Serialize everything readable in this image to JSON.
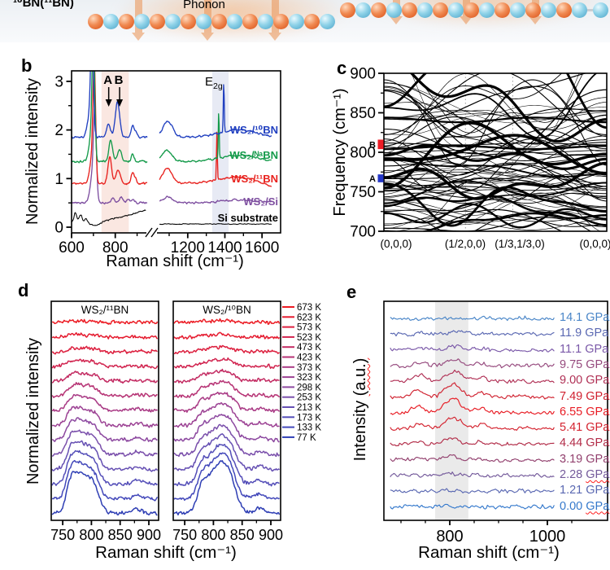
{
  "schematic": {
    "label": "¹⁰BN(¹¹BN)",
    "phonon_label": "Phonon",
    "boron_color": "#e05a20",
    "nitrogen_color": "#6cc0dd",
    "arrow_color": "#eb9a60",
    "left_chain_atoms": 16,
    "right_chain_atoms": 16
  },
  "chart_data": {
    "panel_b": {
      "letter": "b",
      "type": "line",
      "xlabel": "Raman shift (cm⁻¹)",
      "ylabel": "Normalized intensity",
      "yticks": [
        0,
        1,
        2,
        3
      ],
      "xticks": [
        600,
        800,
        1200,
        1400,
        1600
      ],
      "xaxis_break": [
        950,
        1030
      ],
      "ylim": [
        0,
        3.2
      ],
      "highlight_bands": [
        {
          "x0": 737,
          "x1": 862,
          "color": "#fae7e1"
        },
        {
          "x0": 1332,
          "x1": 1420,
          "color": "#e7eaf4"
        }
      ],
      "annotations": [
        {
          "text": "A",
          "x": 770
        },
        {
          "text": "B",
          "x": 820
        },
        {
          "text_base": "E",
          "text_sub": "2g",
          "x": 1380
        }
      ],
      "series": [
        {
          "name": "si-substrate",
          "label": "Si substrate",
          "color": "#000000",
          "baseline": 0.1,
          "baseline_right": 0.065,
          "noise": 0.014,
          "lw": 1.05,
          "peaks": [
            [
              617,
              6,
              0.2
            ],
            [
              641,
              7,
              0.16
            ],
            [
              666,
              6,
              0.09
            ],
            [
              705,
              18,
              -0.07
            ]
          ],
          "ramp": {
            "from": 730,
            "to": 950,
            "h": 0.26
          },
          "peaks_right": []
        },
        {
          "name": "ws2-si",
          "label": "WS₂/Si",
          "color": "#7e4fa0",
          "baseline": 0.5,
          "noise": 0.02,
          "lw": 1.35,
          "peaks": [
            [
              707,
              6.5,
              1.6
            ],
            [
              697,
              12,
              0.55
            ],
            [
              790,
              8,
              0.1
            ],
            [
              828,
              9,
              0.11
            ],
            [
              859,
              8,
              0.08
            ],
            [
              882,
              7,
              0.06
            ]
          ],
          "peaks_right": [
            [
              1093,
              26,
              0.12
            ],
            [
              1480,
              95,
              0.06
            ]
          ]
        },
        {
          "name": "ws2-11bn",
          "label": "WS₂/¹¹BN",
          "color": "#e8211d",
          "baseline": 0.9,
          "noise": 0.02,
          "lw": 1.35,
          "peaks": [
            [
              704,
              6,
              2.2
            ],
            [
              694,
              11,
              0.5
            ],
            [
              775,
              8.5,
              0.55
            ],
            [
              813,
              10,
              0.28
            ],
            [
              879,
              6,
              0.22
            ],
            [
              893,
              6,
              0.1
            ]
          ],
          "peaks_right": [
            [
              1090,
              26,
              0.3
            ],
            [
              1357,
              2.3,
              0.97
            ],
            [
              1460,
              100,
              0.13
            ],
            [
              1690,
              60,
              -0.1
            ]
          ]
        },
        {
          "name": "ws2-nabn",
          "label": "WS₂/ᴺᵃBN",
          "color": "#149a4a",
          "baseline": 1.35,
          "noise": 0.02,
          "lw": 1.35,
          "peaks": [
            [
              700,
              6,
              2.3
            ],
            [
              690,
              11,
              0.5
            ],
            [
              779,
              8.5,
              0.43
            ],
            [
              820,
              9,
              0.25
            ],
            [
              880,
              6,
              0.15
            ]
          ],
          "peaks_right": [
            [
              1090,
              26,
              0.22
            ],
            [
              1367,
              2.3,
              1.0
            ],
            [
              1470,
              100,
              0.13
            ]
          ]
        },
        {
          "name": "ws2-10bn",
          "label": "WS₂/¹⁰BN",
          "color": "#2140c0",
          "baseline": 1.85,
          "noise": 0.02,
          "lw": 1.35,
          "peaks": [
            [
              694,
              6,
              2.1
            ],
            [
              684,
              11,
              0.5
            ],
            [
              769,
              9,
              0.28
            ],
            [
              810,
              10,
              0.73
            ],
            [
              879,
              6,
              0.25
            ],
            [
              894,
              6,
              0.13
            ]
          ],
          "peaks_right": [
            [
              1093,
              26,
              0.33
            ],
            [
              1394,
              2.5,
              1.05
            ],
            [
              1470,
              100,
              0.15
            ]
          ]
        }
      ]
    },
    "panel_c": {
      "letter": "c",
      "type": "dispersion",
      "ylabel": "Frequency (cm⁻¹)",
      "yticks": [
        700,
        750,
        800,
        850,
        900
      ],
      "ylim": [
        700,
        900
      ],
      "kpath_labels": [
        "(0,0,0)",
        "(1/2,0,0)",
        "(1/3,1/3,0)",
        "(0,0,0)"
      ],
      "markers": [
        {
          "text": "B",
          "freq": 810,
          "f0": 804,
          "f1": 816,
          "color": "#ee1c25"
        },
        {
          "text": "A",
          "freq": 767,
          "f0": 762,
          "f1": 772,
          "color": "#2437c8"
        }
      ],
      "flat_bands": [
        [
          806,
          2,
          2.4
        ],
        [
          810.5,
          1.2,
          1.1
        ],
        [
          801,
          1.5,
          0.9
        ],
        [
          841,
          3,
          2.2
        ],
        [
          848,
          5,
          0.8
        ],
        [
          765,
          4,
          0.8
        ],
        [
          772,
          3,
          0.8
        ]
      ],
      "n_random_bands": 68,
      "seed": 11
    },
    "panel_d": {
      "letter": "d",
      "type": "line",
      "xlabel": "Raman shift (cm⁻¹)",
      "ylabel": "Normalized intensity",
      "xticks": [
        750,
        800,
        850,
        900
      ],
      "xlim": [
        730,
        917
      ],
      "subplots": [
        {
          "title": "WS₂/¹¹BN",
          "mode": "bn11"
        },
        {
          "title": "WS₂/¹⁰BN",
          "mode": "bn10"
        }
      ],
      "temperatures": [
        {
          "label": "673 K",
          "color": "#ec1c24",
          "peak_h": 2
        },
        {
          "label": "623 K",
          "color": "#e51b2f",
          "peak_h": 3
        },
        {
          "label": "573 K",
          "color": "#dc1f3e",
          "peak_h": 5
        },
        {
          "label": "523 K",
          "color": "#d1244f",
          "peak_h": 8
        },
        {
          "label": "473 K",
          "color": "#c32b62",
          "peak_h": 11
        },
        {
          "label": "423 K",
          "color": "#b63274",
          "peak_h": 15
        },
        {
          "label": "373 K",
          "color": "#a93a85",
          "peak_h": 19
        },
        {
          "label": "323 K",
          "color": "#9c4294",
          "peak_h": 23
        },
        {
          "label": "298 K",
          "color": "#8d49a0",
          "peak_h": 27
        },
        {
          "label": "253 K",
          "color": "#7a4fab",
          "peak_h": 31
        },
        {
          "label": "213 K",
          "color": "#6650b3",
          "peak_h": 36
        },
        {
          "label": "173 K",
          "color": "#544eb8",
          "peak_h": 42
        },
        {
          "label": "133 K",
          "color": "#4348ba",
          "peak_h": 48
        },
        {
          "label": "77 K",
          "color": "#2e3eb4",
          "peak_h": 55
        }
      ]
    },
    "panel_e": {
      "letter": "e",
      "type": "line",
      "xlabel": "Raman shift (cm⁻¹)",
      "ylabel_main": "Intensity ",
      "ylabel_units": "(a.u.)",
      "xticks": [
        800,
        1000
      ],
      "xlim": [
        665,
        1020
      ],
      "highlight_band": {
        "x0": 770,
        "x1": 838
      },
      "pressures": [
        {
          "label": "14.1 GPa",
          "color": "#4a86c8",
          "peak_h": 1.5,
          "peak_h2": 0.5,
          "center": 820,
          "squiggle": false
        },
        {
          "label": "11.9 GPa",
          "color": "#5a68b2",
          "peak_h": 3,
          "peak_h2": 1,
          "center": 818,
          "squiggle": false
        },
        {
          "label": "11.1 GPa",
          "color": "#7a58a8",
          "peak_h": 5,
          "peak_h2": 2,
          "center": 812,
          "squiggle": false
        },
        {
          "label": "9.75 GPa",
          "color": "#964a7e",
          "peak_h": 8,
          "peak_h2": 4,
          "center": 810,
          "squiggle": false
        },
        {
          "label": "9.00 GPa",
          "color": "#b03055",
          "peak_h": 13,
          "peak_h2": 8,
          "center": 810,
          "squiggle": false
        },
        {
          "label": "7.49 GPa",
          "color": "#d02230",
          "peak_h": 16,
          "peak_h2": 9,
          "center": 807,
          "squiggle": false
        },
        {
          "label": "6.55 GPa",
          "color": "#e81c24",
          "peak_h": 18,
          "peak_h2": 8,
          "center": 805,
          "squiggle": false
        },
        {
          "label": "5.41 GPa",
          "color": "#d42430",
          "peak_h": 13,
          "peak_h2": 5,
          "center": 808,
          "squiggle": false
        },
        {
          "label": "4.44 GPa",
          "color": "#b22c48",
          "peak_h": 8,
          "peak_h2": 2.5,
          "center": 802,
          "squiggle": false
        },
        {
          "label": "3.19 GPa",
          "color": "#92406e",
          "peak_h": 5,
          "peak_h2": 1.5,
          "center": 800,
          "squiggle": false
        },
        {
          "label": "2.28 GPa",
          "color": "#745a9b",
          "peak_h": 2.5,
          "peak_h2": 0.6,
          "center": 798,
          "squiggle": true
        },
        {
          "label": "1.21 GPa",
          "color": "#5a68b2",
          "peak_h": 1.5,
          "peak_h2": 0.4,
          "center": 797,
          "squiggle": false
        },
        {
          "label": "0.00 GPa",
          "color": "#3579cc",
          "peak_h": 1.5,
          "peak_h2": 0.4,
          "center": 796,
          "squiggle": true
        }
      ]
    }
  }
}
